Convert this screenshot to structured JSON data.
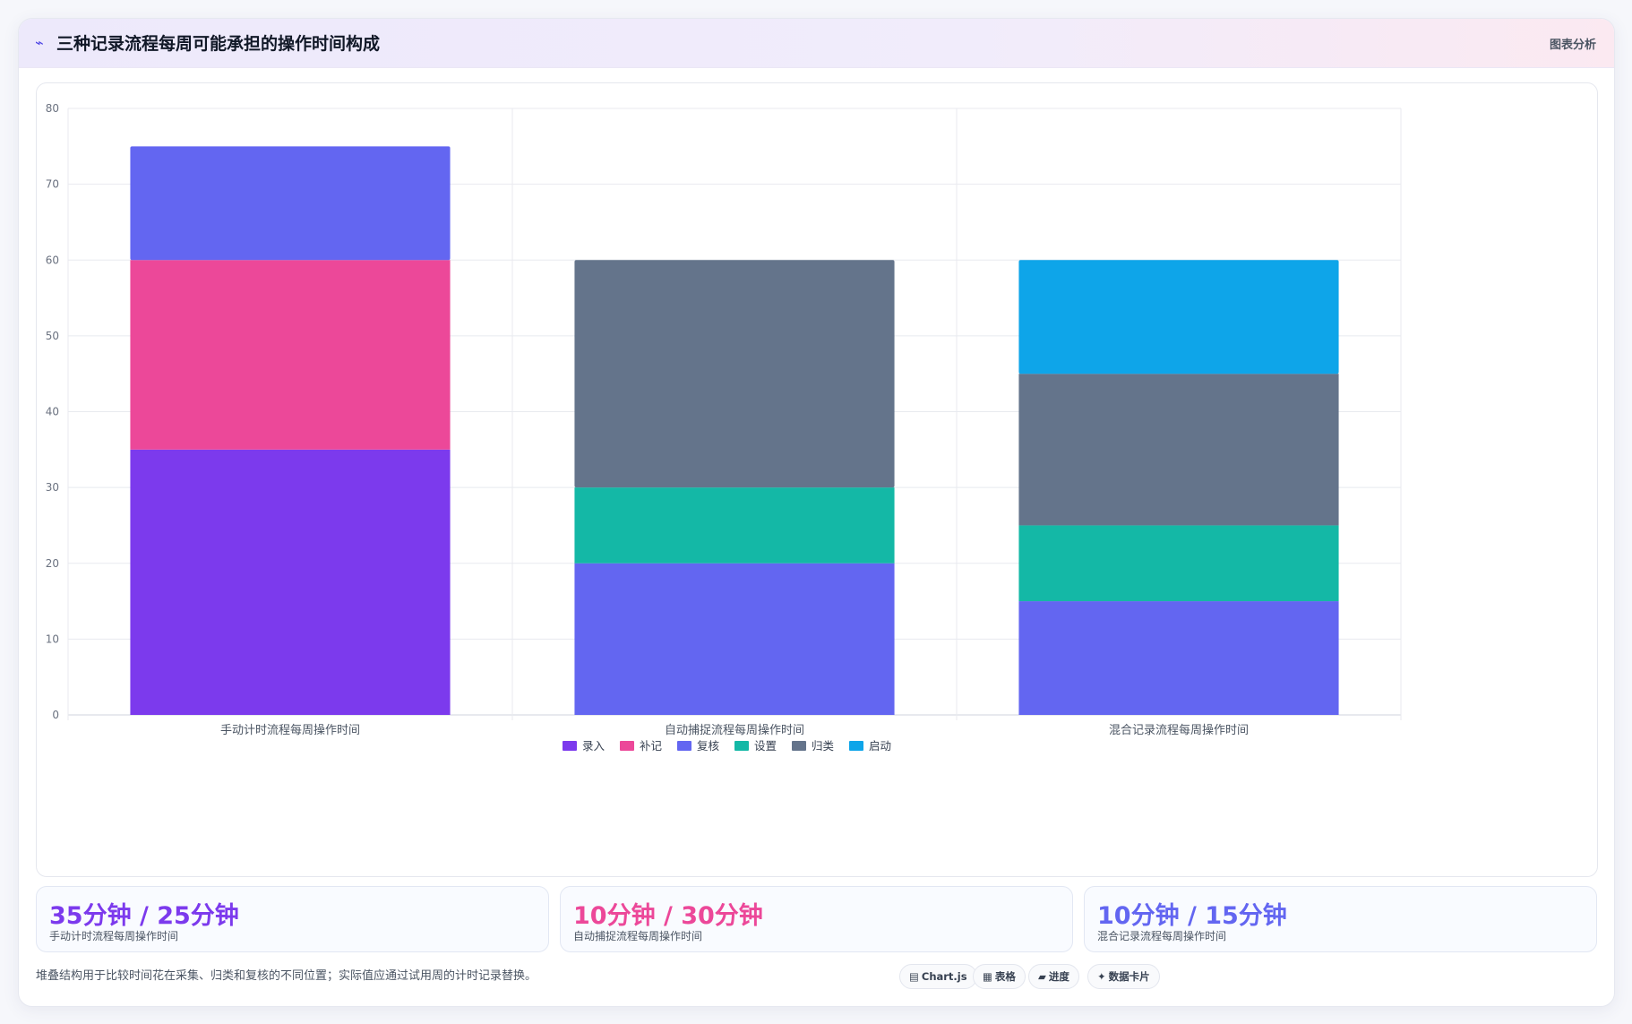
{
  "header": {
    "icon": "line-chart-icon",
    "title": "三种记录流程每周可能承担的操作时间构成",
    "action_label": "图表分析"
  },
  "chart_data": {
    "type": "bar",
    "stacked": true,
    "categories": [
      "手动计时流程每周操作时间",
      "自动捕捉流程每周操作时间",
      "混合记录流程每周操作时间"
    ],
    "series": [
      {
        "name": "录入",
        "color": "#7c3aed",
        "values": [
          35,
          0,
          0
        ]
      },
      {
        "name": "补记",
        "color": "#ec4899",
        "values": [
          25,
          0,
          0
        ]
      },
      {
        "name": "复核",
        "color": "#6366f1",
        "values": [
          15,
          20,
          15
        ]
      },
      {
        "name": "设置",
        "color": "#14b8a6",
        "values": [
          0,
          10,
          10
        ]
      },
      {
        "name": "归类",
        "color": "#64748b",
        "values": [
          0,
          30,
          20
        ]
      },
      {
        "name": "启动",
        "color": "#0ea5e9",
        "values": [
          0,
          0,
          15
        ]
      }
    ],
    "ylim": [
      0,
      80
    ],
    "yticks": [
      0,
      10,
      20,
      30,
      40,
      50,
      60,
      70,
      80
    ],
    "grid": true,
    "legend": "bottom-center"
  },
  "stats": [
    {
      "value": "35分钟 / 25分钟",
      "label": "手动计时流程每周操作时间",
      "color": "#7c3aed"
    },
    {
      "value": "10分钟 / 30分钟",
      "label": "自动捕捉流程每周操作时间",
      "color": "#ec4899"
    },
    {
      "value": "10分钟 / 15分钟",
      "label": "混合记录流程每周操作时间",
      "color": "#6366f1"
    }
  ],
  "footnote": "堆叠结构用于比较时间花在采集、归类和复核的不同位置；实际值应通过试用周的计时记录替换。",
  "chips": [
    {
      "icon": "chart-icon",
      "glyph": "▤",
      "label": "Chart.js"
    },
    {
      "icon": "table-icon",
      "glyph": "▦",
      "label": "表格"
    },
    {
      "icon": "progress-icon",
      "glyph": "▰",
      "label": "进度"
    },
    {
      "icon": "data-card-icon",
      "glyph": "✦",
      "label": "数据卡片"
    }
  ]
}
